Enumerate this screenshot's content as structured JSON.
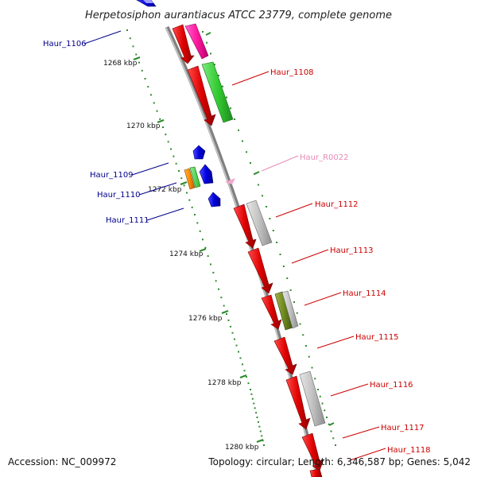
{
  "title": "Herpetosiphon aurantiacus ATCC 23779, complete genome",
  "footer": {
    "accession": "Accession: NC_009972",
    "topology": "Topology: circular; Length: 6,346,587 bp; Genes: 5,042"
  },
  "colors": {
    "backbone": "#7f7f7f",
    "ruler": "#2e8b2e",
    "reverse_label": "#00008b",
    "forward_label": "#cc0000",
    "rna_label": "#e68ab5"
  },
  "ticks": [
    {
      "label": "1268 kbp"
    },
    {
      "label": "1270 kbp"
    },
    {
      "label": "1272 kbp"
    },
    {
      "label": "1274 kbp"
    },
    {
      "label": "1276 kbp"
    },
    {
      "label": "1278 kbp"
    },
    {
      "label": "1280 kbp"
    }
  ],
  "gene_labels": [
    {
      "name": "Haur_1106",
      "strand": "reverse"
    },
    {
      "name": "Haur_1108",
      "strand": "forward"
    },
    {
      "name": "Haur_R0022",
      "strand": "rna"
    },
    {
      "name": "Haur_1109",
      "strand": "reverse"
    },
    {
      "name": "Haur_1110",
      "strand": "reverse"
    },
    {
      "name": "Haur_1111",
      "strand": "reverse"
    },
    {
      "name": "Haur_1112",
      "strand": "forward"
    },
    {
      "name": "Haur_1113",
      "strand": "forward"
    },
    {
      "name": "Haur_1114",
      "strand": "forward"
    },
    {
      "name": "Haur_1115",
      "strand": "forward"
    },
    {
      "name": "Haur_1116",
      "strand": "forward"
    },
    {
      "name": "Haur_1117",
      "strand": "forward"
    },
    {
      "name": "Haur_1118",
      "strand": "forward"
    }
  ]
}
